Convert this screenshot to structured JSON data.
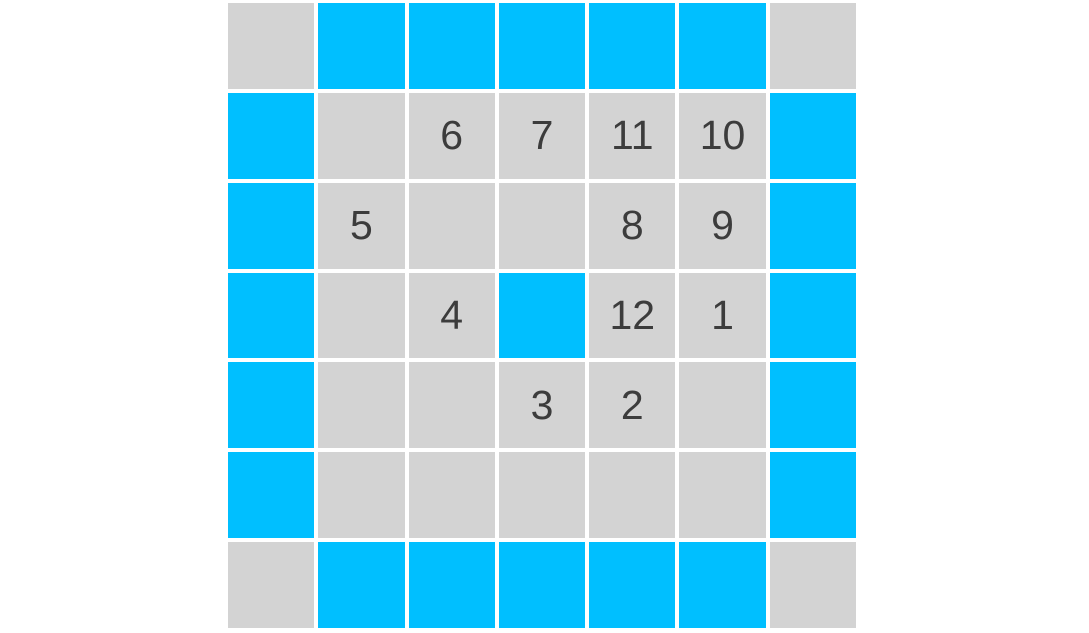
{
  "board": {
    "rows": 7,
    "cols": 7,
    "cells": [
      [
        "G",
        "B",
        "B",
        "B",
        "B",
        "B",
        "G"
      ],
      [
        "B",
        "G",
        "6",
        "7",
        "11",
        "10",
        "B"
      ],
      [
        "B",
        "5",
        "G",
        "G",
        "8",
        "9",
        "B"
      ],
      [
        "B",
        "G",
        "4",
        "B",
        "12",
        "1",
        "B"
      ],
      [
        "B",
        "G",
        "G",
        "3",
        "2",
        "G",
        "B"
      ],
      [
        "B",
        "G",
        "G",
        "G",
        "G",
        "G",
        "B"
      ],
      [
        "G",
        "B",
        "B",
        "B",
        "B",
        "B",
        "G"
      ]
    ],
    "legend": {
      "B": "blue-tile",
      "G": "gray-empty-tile",
      "number": "gray-tile-with-clue-number"
    },
    "clue_numbers_visible": [
      "1",
      "2",
      "3",
      "4",
      "5",
      "6",
      "7",
      "8",
      "9",
      "10",
      "11",
      "12"
    ]
  },
  "colors": {
    "tile_blue": "#00bfff",
    "tile_gray": "#d3d3d3",
    "number_text": "#3c3c3c",
    "background": "#ffffff"
  }
}
